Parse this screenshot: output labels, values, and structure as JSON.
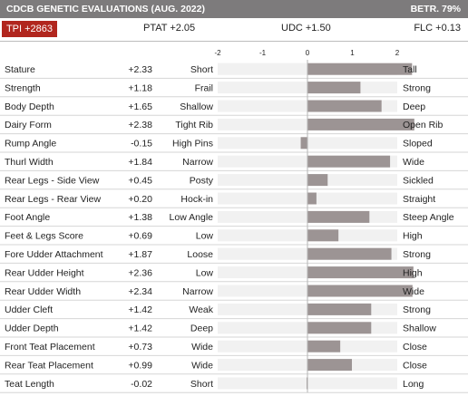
{
  "header": {
    "title": "CDCB GENETIC EVALUATIONS (AUG. 2022)",
    "reliability": "BETR. 79%"
  },
  "indexes": {
    "tpi": "TPI +2863",
    "ptat": "PTAT +2.05",
    "udc": "UDC +1.50",
    "flc": "FLC +0.13"
  },
  "colors": {
    "header_bg": "#7d7b7c",
    "tpi_bg": "#b1261e",
    "bar": "#9c9494",
    "track": "#f1f1f1"
  },
  "chart_data": {
    "type": "bar",
    "orientation": "horizontal",
    "xlim": [
      -2,
      2
    ],
    "ticks": [
      "-2",
      "-1",
      "0",
      "1",
      "2"
    ],
    "tick_values": [
      -2,
      -1,
      0,
      1,
      2
    ],
    "grid": false,
    "rows": [
      {
        "trait": "Stature",
        "value_label": "+2.33",
        "value": 2.33,
        "low": "Short",
        "high": "Tall"
      },
      {
        "trait": "Strength",
        "value_label": "+1.18",
        "value": 1.18,
        "low": "Frail",
        "high": "Strong"
      },
      {
        "trait": "Body Depth",
        "value_label": "+1.65",
        "value": 1.65,
        "low": "Shallow",
        "high": "Deep"
      },
      {
        "trait": "Dairy Form",
        "value_label": "+2.38",
        "value": 2.38,
        "low": "Tight Rib",
        "high": "Open Rib"
      },
      {
        "trait": "Rump Angle",
        "value_label": "-0.15",
        "value": -0.15,
        "low": "High Pins",
        "high": "Sloped"
      },
      {
        "trait": "Thurl Width",
        "value_label": "+1.84",
        "value": 1.84,
        "low": "Narrow",
        "high": "Wide"
      },
      {
        "trait": "Rear Legs - Side View",
        "value_label": "+0.45",
        "value": 0.45,
        "low": "Posty",
        "high": "Sickled"
      },
      {
        "trait": "Rear Legs - Rear View",
        "value_label": "+0.20",
        "value": 0.2,
        "low": "Hock-in",
        "high": "Straight"
      },
      {
        "trait": "Foot Angle",
        "value_label": "+1.38",
        "value": 1.38,
        "low": "Low Angle",
        "high": "Steep Angle"
      },
      {
        "trait": "Feet & Legs Score",
        "value_label": "+0.69",
        "value": 0.69,
        "low": "Low",
        "high": "High"
      },
      {
        "trait": "Fore Udder Attachment",
        "value_label": "+1.87",
        "value": 1.87,
        "low": "Loose",
        "high": "Strong"
      },
      {
        "trait": "Rear Udder Height",
        "value_label": "+2.36",
        "value": 2.36,
        "low": "Low",
        "high": "High"
      },
      {
        "trait": "Rear Udder Width",
        "value_label": "+2.34",
        "value": 2.34,
        "low": "Narrow",
        "high": "Wide"
      },
      {
        "trait": "Udder Cleft",
        "value_label": "+1.42",
        "value": 1.42,
        "low": "Weak",
        "high": "Strong"
      },
      {
        "trait": "Udder Depth",
        "value_label": "+1.42",
        "value": 1.42,
        "low": "Deep",
        "high": "Shallow"
      },
      {
        "trait": "Front Teat Placement",
        "value_label": "+0.73",
        "value": 0.73,
        "low": "Wide",
        "high": "Close"
      },
      {
        "trait": "Rear Teat Placement",
        "value_label": "+0.99",
        "value": 0.99,
        "low": "Wide",
        "high": "Close"
      },
      {
        "trait": "Teat Length",
        "value_label": "-0.02",
        "value": -0.02,
        "low": "Short",
        "high": "Long"
      }
    ]
  }
}
